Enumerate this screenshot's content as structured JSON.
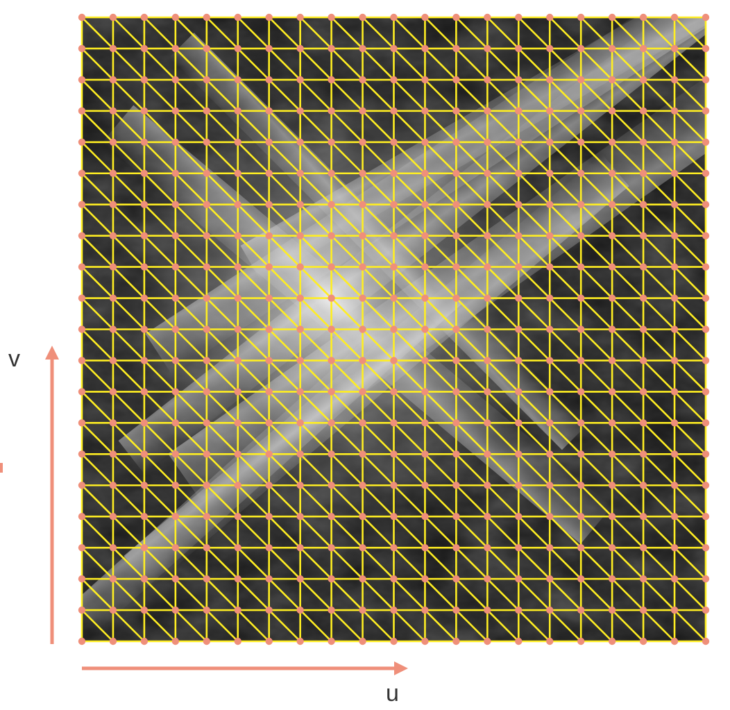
{
  "mesh": {
    "divisions": 20,
    "triangulation": "diagonal"
  },
  "axes": {
    "u_label": "u",
    "v_label": "v"
  },
  "colors": {
    "mesh_line": "#ffee22",
    "vertex": "#ef8f7a",
    "axis_arrow": "#ef8f7a",
    "heightmap_dark": "#0b0b0b",
    "heightmap_light": "#e6e6e6"
  }
}
